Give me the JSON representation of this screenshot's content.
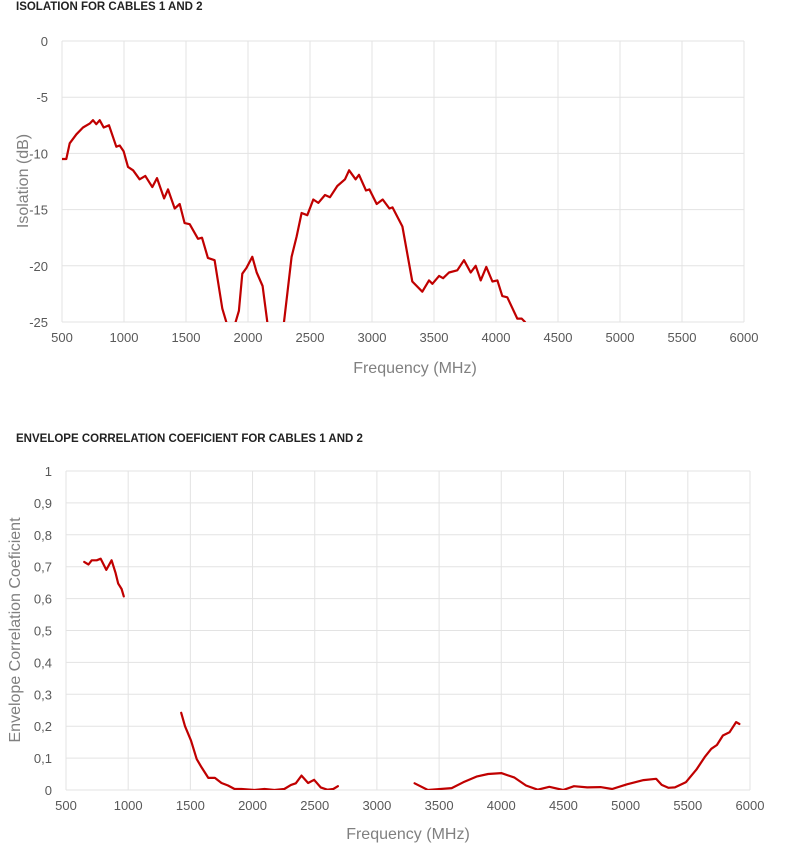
{
  "colors": {
    "series": "#c00000",
    "grid": "#e3e3e3"
  },
  "chart_data": [
    {
      "type": "line",
      "title": "ISOLATION FOR CABLES 1 AND 2",
      "xlabel": "Frequency (MHz)",
      "ylabel": "Isolation (dB)",
      "xlim": [
        500,
        6000
      ],
      "ylim": [
        -25,
        0
      ],
      "grid": true,
      "xticks": [
        500,
        1000,
        1500,
        2000,
        2500,
        3000,
        3500,
        4000,
        4500,
        5000,
        5500,
        6000
      ],
      "xtick_labels": [
        "500",
        "1000",
        "1500",
        "2000",
        "2500",
        "3000",
        "3500",
        "4000",
        "4500",
        "5000",
        "5500",
        "6000"
      ],
      "yticks": [
        0,
        -5,
        -10,
        -15,
        -20,
        -25
      ],
      "ytick_labels": [
        "0",
        "-5",
        "-10",
        "-15",
        "-20",
        "-25"
      ],
      "series": [
        {
          "segments": [
            [
              [
                500,
                -10.5
              ],
              [
                535,
                -10.5
              ],
              [
                562,
                -9.1
              ],
              [
                616,
                -8.3
              ],
              [
                669,
                -7.7
              ],
              [
                723,
                -7.35
              ],
              [
                750,
                -7.05
              ],
              [
                777,
                -7.4
              ],
              [
                804,
                -7.05
              ],
              [
                836,
                -7.7
              ],
              [
                879,
                -7.5
              ],
              [
                938,
                -9.4
              ],
              [
                965,
                -9.3
              ],
              [
                997,
                -9.8
              ],
              [
                1032,
                -11.2
              ],
              [
                1073,
                -11.5
              ],
              [
                1126,
                -12.3
              ],
              [
                1172,
                -12.0
              ],
              [
                1228,
                -13.0
              ],
              [
                1266,
                -12.2
              ],
              [
                1323,
                -14.0
              ],
              [
                1355,
                -13.2
              ],
              [
                1409,
                -14.9
              ],
              [
                1449,
                -14.5
              ],
              [
                1489,
                -16.2
              ],
              [
                1530,
                -16.3
              ],
              [
                1597,
                -17.6
              ],
              [
                1629,
                -17.5
              ],
              [
                1677,
                -19.3
              ],
              [
                1731,
                -19.5
              ],
              [
                1793,
                -23.8
              ],
              [
                1825,
                -25
              ]
            ],
            [
              [
                1900,
                -25
              ],
              [
                1927,
                -24
              ],
              [
                1954,
                -20.7
              ],
              [
                1987,
                -20.2
              ],
              [
                2035,
                -19.2
              ],
              [
                2070,
                -20.6
              ],
              [
                2118,
                -21.8
              ],
              [
                2156,
                -25
              ]
            ],
            [
              [
                2290,
                -25
              ],
              [
                2352,
                -19.2
              ],
              [
                2392,
                -17.4
              ],
              [
                2432,
                -15.3
              ],
              [
                2478,
                -15.5
              ],
              [
                2527,
                -14.1
              ],
              [
                2567,
                -14.4
              ],
              [
                2621,
                -13.7
              ],
              [
                2661,
                -13.9
              ],
              [
                2720,
                -12.9
              ],
              [
                2782,
                -12.3
              ],
              [
                2815,
                -11.5
              ],
              [
                2868,
                -12.3
              ],
              [
                2895,
                -11.9
              ],
              [
                2952,
                -13.3
              ],
              [
                2979,
                -13.2
              ],
              [
                3038,
                -14.5
              ],
              [
                3086,
                -14.1
              ],
              [
                3140,
                -14.9
              ],
              [
                3165,
                -14.8
              ],
              [
                3245,
                -16.5
              ],
              [
                3325,
                -21.4
              ],
              [
                3406,
                -22.3
              ],
              [
                3460,
                -21.3
              ],
              [
                3487,
                -21.6
              ],
              [
                3541,
                -20.9
              ],
              [
                3573,
                -21.1
              ],
              [
                3621,
                -20.6
              ],
              [
                3688,
                -20.4
              ],
              [
                3742,
                -19.5
              ],
              [
                3796,
                -20.6
              ],
              [
                3836,
                -20.0
              ],
              [
                3877,
                -21.3
              ],
              [
                3922,
                -20.1
              ],
              [
                3971,
                -21.4
              ],
              [
                4011,
                -21.3
              ],
              [
                4051,
                -22.7
              ],
              [
                4091,
                -22.8
              ],
              [
                4172,
                -24.7
              ],
              [
                4207,
                -24.7
              ],
              [
                4234,
                -25
              ]
            ]
          ]
        }
      ]
    },
    {
      "type": "line",
      "title": "ENVELOPE CORRELATION COEFICIENT FOR CABLES 1 AND 2",
      "xlabel": "Frequency (MHz)",
      "ylabel": "Envelope Correlation Coeficient",
      "xlim": [
        500,
        6000
      ],
      "ylim": [
        0,
        1
      ],
      "grid": true,
      "xticks": [
        500,
        1000,
        1500,
        2000,
        2500,
        3000,
        3500,
        4000,
        4500,
        5000,
        5500,
        6000
      ],
      "xtick_labels": [
        "500",
        "1000",
        "1500",
        "2000",
        "2500",
        "3000",
        "3500",
        "4000",
        "4500",
        "5000",
        "5500",
        "6000"
      ],
      "yticks": [
        1,
        0.9,
        0.8,
        0.7,
        0.6,
        0.5,
        0.4,
        0.3,
        0.2,
        0.1,
        0
      ],
      "ytick_labels": [
        "1",
        "0,9",
        "0,8",
        "0,7",
        "0,6",
        "0,5",
        "0,4",
        "0,3",
        "0,2",
        "0,1",
        "0"
      ],
      "series": [
        {
          "segments": [
            [
              [
                646,
                0.715
              ],
              [
                681,
                0.707
              ],
              [
                707,
                0.72
              ],
              [
                747,
                0.72
              ],
              [
                779,
                0.725
              ],
              [
                824,
                0.69
              ],
              [
                867,
                0.72
              ],
              [
                899,
                0.68
              ],
              [
                920,
                0.647
              ],
              [
                947,
                0.63
              ],
              [
                965,
                0.607
              ]
            ],
            [
              [
                1426,
                0.242
              ],
              [
                1457,
                0.2
              ],
              [
                1505,
                0.155
              ],
              [
                1551,
                0.097
              ],
              [
                1590,
                0.071
              ],
              [
                1644,
                0.038
              ],
              [
                1697,
                0.038
              ],
              [
                1750,
                0.022
              ],
              [
                1803,
                0.014
              ],
              [
                1856,
                0.003
              ],
              [
                1910,
                0.003
              ],
              [
                2016,
                0
              ],
              [
                2096,
                0.003
              ],
              [
                2176,
                0
              ],
              [
                2255,
                0.003
              ],
              [
                2309,
                0.016
              ],
              [
                2348,
                0.021
              ],
              [
                2394,
                0.045
              ],
              [
                2447,
                0.022
              ],
              [
                2495,
                0.032
              ],
              [
                2548,
                0.008
              ],
              [
                2601,
                0.001
              ],
              [
                2649,
                0.003
              ],
              [
                2686,
                0.012
              ]
            ],
            [
              [
                3303,
                0.021
              ],
              [
                3410,
                0
              ],
              [
                3601,
                0.006
              ],
              [
                3694,
                0.024
              ],
              [
                3801,
                0.042
              ],
              [
                3894,
                0.05
              ],
              [
                4000,
                0.053
              ],
              [
                4106,
                0.039
              ],
              [
                4199,
                0.014
              ],
              [
                4293,
                0.001
              ],
              [
                4386,
                0.01
              ],
              [
                4497,
                0
              ],
              [
                4585,
                0.012
              ],
              [
                4691,
                0.008
              ],
              [
                4798,
                0.009
              ],
              [
                4891,
                0.003
              ],
              [
                5011,
                0.018
              ],
              [
                5144,
                0.031
              ],
              [
                5245,
                0.035
              ],
              [
                5290,
                0.016
              ],
              [
                5343,
                0.007
              ],
              [
                5396,
                0.008
              ],
              [
                5484,
                0.024
              ],
              [
                5569,
                0.064
              ],
              [
                5636,
                0.103
              ],
              [
                5689,
                0.129
              ],
              [
                5734,
                0.141
              ],
              [
                5782,
                0.171
              ],
              [
                5835,
                0.181
              ],
              [
                5888,
                0.213
              ],
              [
                5915,
                0.207
              ]
            ]
          ]
        }
      ]
    }
  ]
}
